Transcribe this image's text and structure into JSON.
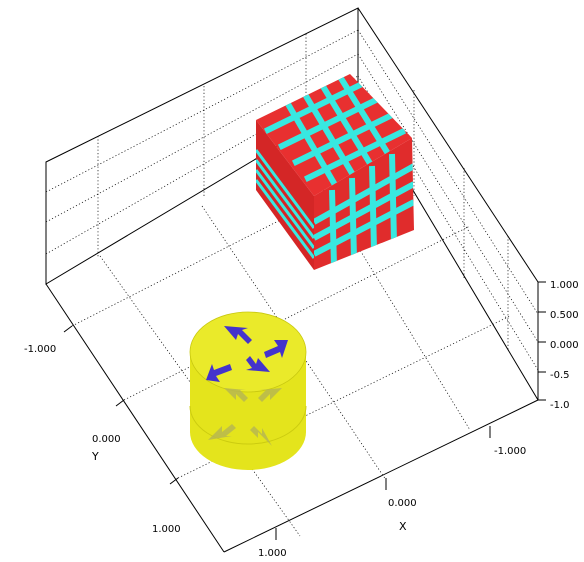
{
  "axes": {
    "x": {
      "label": "X",
      "ticks": [
        "-1.000",
        "0.000",
        "1.000"
      ]
    },
    "y": {
      "label": "Y",
      "ticks": [
        "-1.000",
        "0.000",
        "1.000"
      ]
    },
    "z": {
      "ticks": [
        "1.000",
        "0.500",
        "0.000",
        "-0.5",
        "-1.0"
      ]
    }
  },
  "colors": {
    "cube_face": "#e83030",
    "cube_stripes": "#38e8e0",
    "cylinder": "#e4e41c",
    "arrows": "#4433cc"
  },
  "objects": [
    {
      "shape": "cube",
      "color": "red",
      "decoration": "cyan grid stripes"
    },
    {
      "shape": "cylinder",
      "color": "yellow",
      "decoration": "inward-pointing blue arrows"
    }
  ]
}
